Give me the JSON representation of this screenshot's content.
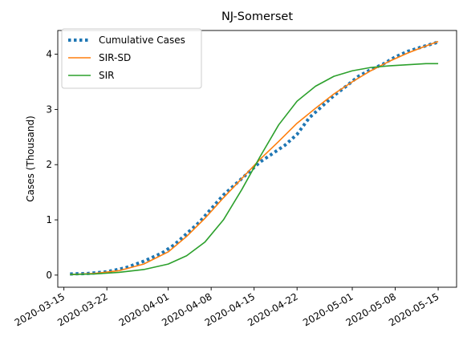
{
  "chart_data": {
    "type": "line",
    "title": "NJ-Somerset",
    "xlabel": "",
    "ylabel": "Cases (Thousand)",
    "xlim": [
      "2020-03-14",
      "2020-05-18"
    ],
    "ylim": [
      -0.22,
      4.43
    ],
    "x_ticks": [
      "2020-03-15",
      "2020-03-22",
      "2020-04-01",
      "2020-04-08",
      "2020-04-15",
      "2020-04-22",
      "2020-05-01",
      "2020-05-08",
      "2020-05-15"
    ],
    "y_ticks": [
      0,
      1,
      2,
      3,
      4
    ],
    "legend_position": "top-left",
    "grid": false,
    "series": [
      {
        "name": "Cumulative Cases",
        "color": "#1f77b4",
        "style": "dotted",
        "x": [
          "2020-03-16",
          "2020-03-19",
          "2020-03-22",
          "2020-03-25",
          "2020-03-28",
          "2020-03-31",
          "2020-04-02",
          "2020-04-04",
          "2020-04-06",
          "2020-04-08",
          "2020-04-10",
          "2020-04-12",
          "2020-04-14",
          "2020-04-16",
          "2020-04-18",
          "2020-04-20",
          "2020-04-21",
          "2020-04-22",
          "2020-04-24",
          "2020-04-26",
          "2020-04-28",
          "2020-04-30",
          "2020-05-02",
          "2020-05-04",
          "2020-05-06",
          "2020-05-08",
          "2020-05-10",
          "2020-05-12",
          "2020-05-15"
        ],
        "y": [
          0.02,
          0.03,
          0.06,
          0.13,
          0.25,
          0.4,
          0.55,
          0.75,
          0.95,
          1.2,
          1.45,
          1.65,
          1.85,
          2.05,
          2.2,
          2.35,
          2.45,
          2.55,
          2.85,
          3.05,
          3.25,
          3.42,
          3.6,
          3.72,
          3.82,
          3.95,
          4.05,
          4.12,
          4.22
        ]
      },
      {
        "name": "SIR-SD",
        "color": "#ff7f0e",
        "style": "solid",
        "x": [
          "2020-03-16",
          "2020-03-20",
          "2020-03-24",
          "2020-03-28",
          "2020-04-01",
          "2020-04-04",
          "2020-04-07",
          "2020-04-10",
          "2020-04-13",
          "2020-04-16",
          "2020-04-19",
          "2020-04-22",
          "2020-04-25",
          "2020-04-28",
          "2020-05-01",
          "2020-05-04",
          "2020-05-07",
          "2020-05-10",
          "2020-05-13",
          "2020-05-15"
        ],
        "y": [
          0.01,
          0.03,
          0.08,
          0.2,
          0.42,
          0.7,
          1.03,
          1.4,
          1.75,
          2.1,
          2.42,
          2.75,
          3.02,
          3.28,
          3.5,
          3.7,
          3.87,
          4.02,
          4.15,
          4.23
        ]
      },
      {
        "name": "SIR",
        "color": "#2ca02c",
        "style": "solid",
        "x": [
          "2020-03-16",
          "2020-03-20",
          "2020-03-24",
          "2020-03-28",
          "2020-04-01",
          "2020-04-04",
          "2020-04-07",
          "2020-04-10",
          "2020-04-13",
          "2020-04-16",
          "2020-04-19",
          "2020-04-22",
          "2020-04-25",
          "2020-04-28",
          "2020-05-01",
          "2020-05-04",
          "2020-05-07",
          "2020-05-10",
          "2020-05-13",
          "2020-05-15"
        ],
        "y": [
          0.01,
          0.02,
          0.05,
          0.1,
          0.2,
          0.35,
          0.6,
          1.0,
          1.55,
          2.15,
          2.72,
          3.15,
          3.42,
          3.6,
          3.7,
          3.76,
          3.79,
          3.81,
          3.83,
          3.83
        ]
      }
    ]
  }
}
